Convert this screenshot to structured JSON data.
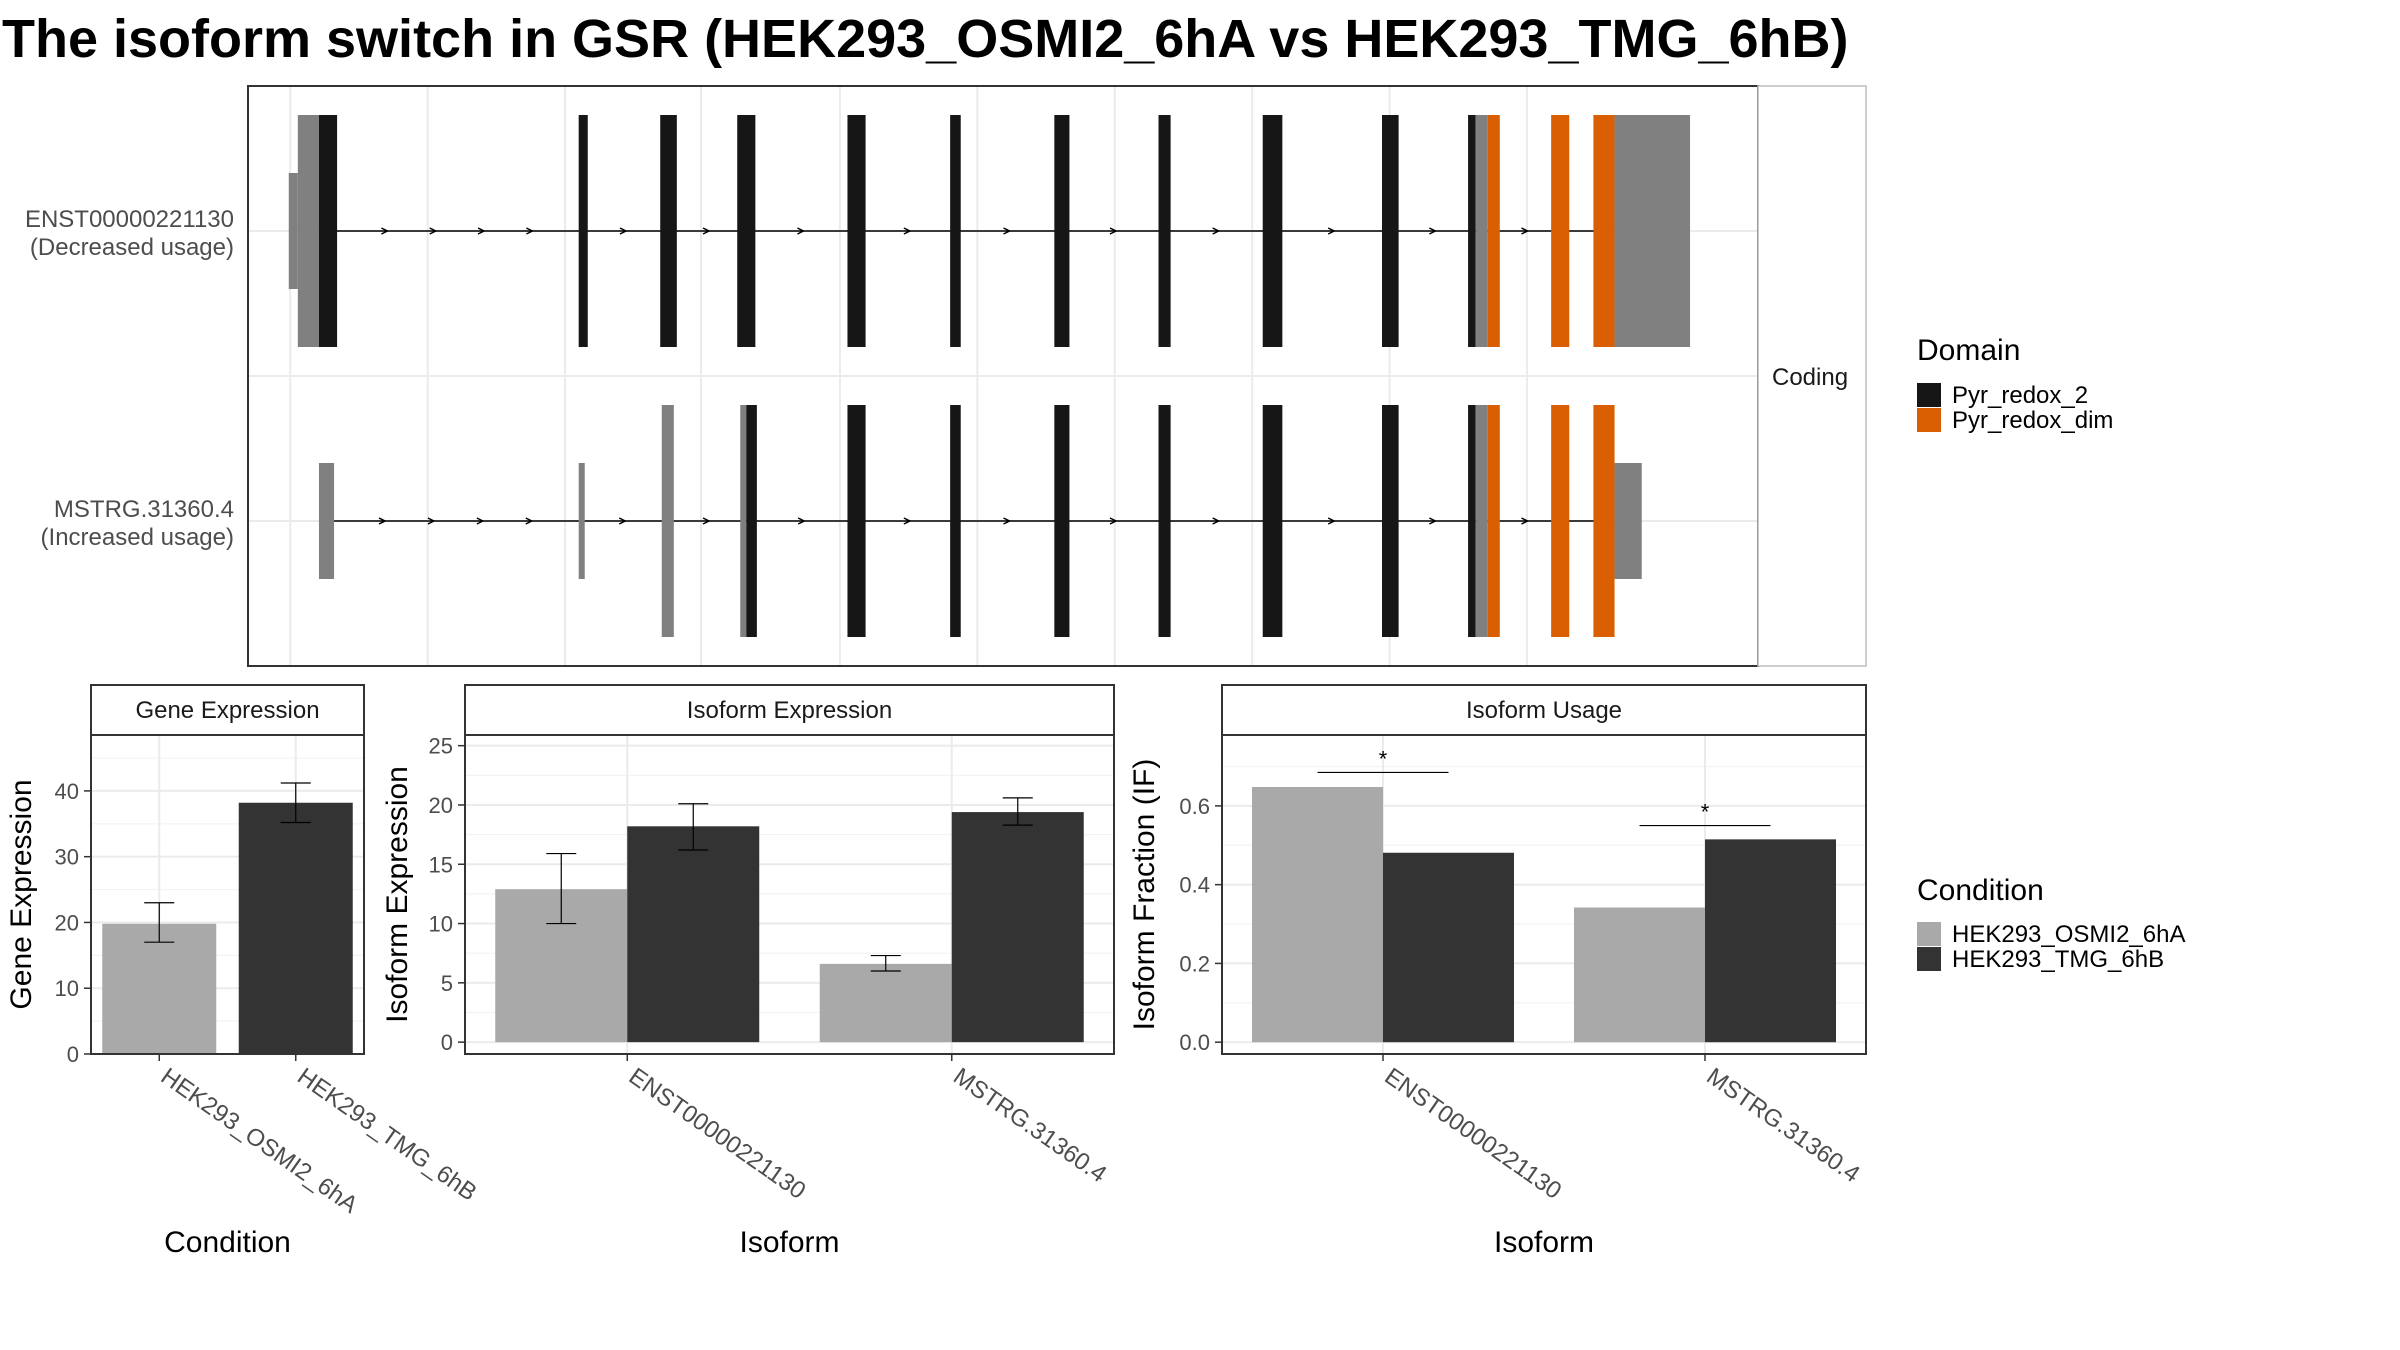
{
  "title": "The isoform switch in GSR (HEK293_OSMI2_6hA vs HEK293_TMG_6hB)",
  "colors": {
    "cond_a": "#a9a9a9",
    "cond_b": "#333333",
    "domain_pyr_redox_2": "#161616",
    "domain_pyr_redox_dim": "#d95f02",
    "utr": "#808080",
    "grid": "#ebebeb"
  },
  "chart_data": [
    {
      "panel": "isoform-structure",
      "type": "other",
      "strip_label": "Coding",
      "isoforms": [
        {
          "id": "ENST00000221130",
          "label": "ENST00000221130",
          "sublabel": "(Decreased usage)",
          "intron_span": [
            0.033,
            0.905
          ],
          "exons": [
            {
              "start": 0.027,
              "end": 0.033,
              "kind": "utr",
              "height": 0.4
            },
            {
              "start": 0.033,
              "end": 0.047,
              "kind": "utr",
              "height": 0.8
            },
            {
              "start": 0.047,
              "end": 0.059,
              "kind": "Pyr_redox_2",
              "height": 0.8
            },
            {
              "start": 0.219,
              "end": 0.225,
              "kind": "Pyr_redox_2",
              "height": 0.8
            },
            {
              "start": 0.273,
              "end": 0.284,
              "kind": "Pyr_redox_2",
              "height": 0.8
            },
            {
              "start": 0.324,
              "end": 0.336,
              "kind": "Pyr_redox_2",
              "height": 0.8
            },
            {
              "start": 0.397,
              "end": 0.409,
              "kind": "Pyr_redox_2",
              "height": 0.8
            },
            {
              "start": 0.465,
              "end": 0.472,
              "kind": "Pyr_redox_2",
              "height": 0.8
            },
            {
              "start": 0.534,
              "end": 0.544,
              "kind": "Pyr_redox_2",
              "height": 0.8
            },
            {
              "start": 0.603,
              "end": 0.611,
              "kind": "Pyr_redox_2",
              "height": 0.8
            },
            {
              "start": 0.672,
              "end": 0.685,
              "kind": "Pyr_redox_2",
              "height": 0.8
            },
            {
              "start": 0.751,
              "end": 0.762,
              "kind": "Pyr_redox_2",
              "height": 0.8
            },
            {
              "start": 0.808,
              "end": 0.813,
              "kind": "Pyr_redox_2",
              "height": 0.8
            },
            {
              "start": 0.813,
              "end": 0.821,
              "kind": "utr",
              "height": 0.8
            },
            {
              "start": 0.821,
              "end": 0.829,
              "kind": "Pyr_redox_dim",
              "height": 0.8
            },
            {
              "start": 0.863,
              "end": 0.875,
              "kind": "Pyr_redox_dim",
              "height": 0.8
            },
            {
              "start": 0.891,
              "end": 0.905,
              "kind": "Pyr_redox_dim",
              "height": 0.8
            },
            {
              "start": 0.905,
              "end": 0.955,
              "kind": "utr",
              "height": 0.8
            }
          ]
        },
        {
          "id": "MSTRG.31360.4",
          "label": "MSTRG.31360.4",
          "sublabel": "(Increased usage)",
          "intron_span": [
            0.047,
            0.905
          ],
          "exons": [
            {
              "start": 0.047,
              "end": 0.057,
              "kind": "utr",
              "height": 0.4
            },
            {
              "start": 0.219,
              "end": 0.223,
              "kind": "utr",
              "height": 0.4
            },
            {
              "start": 0.274,
              "end": 0.282,
              "kind": "utr",
              "height": 0.8
            },
            {
              "start": 0.326,
              "end": 0.33,
              "kind": "utr",
              "height": 0.8
            },
            {
              "start": 0.33,
              "end": 0.337,
              "kind": "Pyr_redox_2",
              "height": 0.8
            },
            {
              "start": 0.397,
              "end": 0.409,
              "kind": "Pyr_redox_2",
              "height": 0.8
            },
            {
              "start": 0.465,
              "end": 0.472,
              "kind": "Pyr_redox_2",
              "height": 0.8
            },
            {
              "start": 0.534,
              "end": 0.544,
              "kind": "Pyr_redox_2",
              "height": 0.8
            },
            {
              "start": 0.603,
              "end": 0.611,
              "kind": "Pyr_redox_2",
              "height": 0.8
            },
            {
              "start": 0.672,
              "end": 0.685,
              "kind": "Pyr_redox_2",
              "height": 0.8
            },
            {
              "start": 0.751,
              "end": 0.762,
              "kind": "Pyr_redox_2",
              "height": 0.8
            },
            {
              "start": 0.808,
              "end": 0.813,
              "kind": "Pyr_redox_2",
              "height": 0.8
            },
            {
              "start": 0.813,
              "end": 0.821,
              "kind": "utr",
              "height": 0.8
            },
            {
              "start": 0.821,
              "end": 0.829,
              "kind": "Pyr_redox_dim",
              "height": 0.8
            },
            {
              "start": 0.863,
              "end": 0.875,
              "kind": "Pyr_redox_dim",
              "height": 0.8
            },
            {
              "start": 0.891,
              "end": 0.905,
              "kind": "Pyr_redox_dim",
              "height": 0.8
            },
            {
              "start": 0.905,
              "end": 0.923,
              "kind": "utr",
              "height": 0.4
            }
          ]
        }
      ]
    },
    {
      "panel": "gene-expression",
      "type": "bar",
      "strip_label": "Gene Expression",
      "xlabel": "Condition",
      "ylabel": "Gene Expression",
      "categories": [
        "HEK293_OSMI2_6hA",
        "HEK293_TMG_6hB"
      ],
      "values": [
        19.8,
        38.2
      ],
      "errors": [
        [
          17.0,
          23.0
        ],
        [
          35.2,
          41.2
        ]
      ],
      "ylim": [
        0,
        48.5
      ],
      "yticks": [
        0,
        10,
        20,
        30,
        40
      ],
      "grid": true
    },
    {
      "panel": "isoform-expression",
      "type": "bar",
      "strip_label": "Isoform Expression",
      "xlabel": "Isoform",
      "ylabel": "Isoform Expression",
      "categories": [
        "ENST00000221130",
        "MSTRG.31360.4"
      ],
      "series": [
        {
          "name": "HEK293_OSMI2_6hA",
          "values": [
            12.9,
            6.6
          ],
          "errors": [
            [
              10.0,
              15.9
            ],
            [
              6.0,
              7.3
            ]
          ]
        },
        {
          "name": "HEK293_TMG_6hB",
          "values": [
            18.2,
            19.4
          ],
          "errors": [
            [
              16.2,
              20.1
            ],
            [
              18.3,
              20.6
            ]
          ]
        }
      ],
      "ylim": [
        -1,
        25.9
      ],
      "yticks": [
        0,
        5,
        10,
        15,
        20,
        25
      ],
      "grid": true
    },
    {
      "panel": "isoform-usage",
      "type": "bar",
      "strip_label": "Isoform Usage",
      "xlabel": "Isoform",
      "ylabel": "Isoform Fraction (IF)",
      "categories": [
        "ENST00000221130",
        "MSTRG.31360.4"
      ],
      "series": [
        {
          "name": "HEK293_OSMI2_6hA",
          "values": [
            0.648,
            0.342
          ]
        },
        {
          "name": "HEK293_TMG_6hB",
          "values": [
            0.481,
            0.515
          ]
        }
      ],
      "annotations": [
        {
          "text": "*",
          "category": "ENST00000221130",
          "y": 0.685
        },
        {
          "text": "*",
          "category": "MSTRG.31360.4",
          "y": 0.55
        }
      ],
      "ylim": [
        -0.03,
        0.78
      ],
      "yticks": [
        "0.0",
        "0.2",
        "0.4",
        "0.6"
      ],
      "grid": true
    }
  ],
  "legend_domain": {
    "title": "Domain",
    "items": [
      {
        "label": "Pyr_redox_2",
        "color": "#161616"
      },
      {
        "label": "Pyr_redox_dim",
        "color": "#d95f02"
      }
    ]
  },
  "legend_condition": {
    "title": "Condition",
    "items": [
      {
        "label": "HEK293_OSMI2_6hA",
        "color": "#a9a9a9"
      },
      {
        "label": "HEK293_TMG_6hB",
        "color": "#333333"
      }
    ]
  }
}
